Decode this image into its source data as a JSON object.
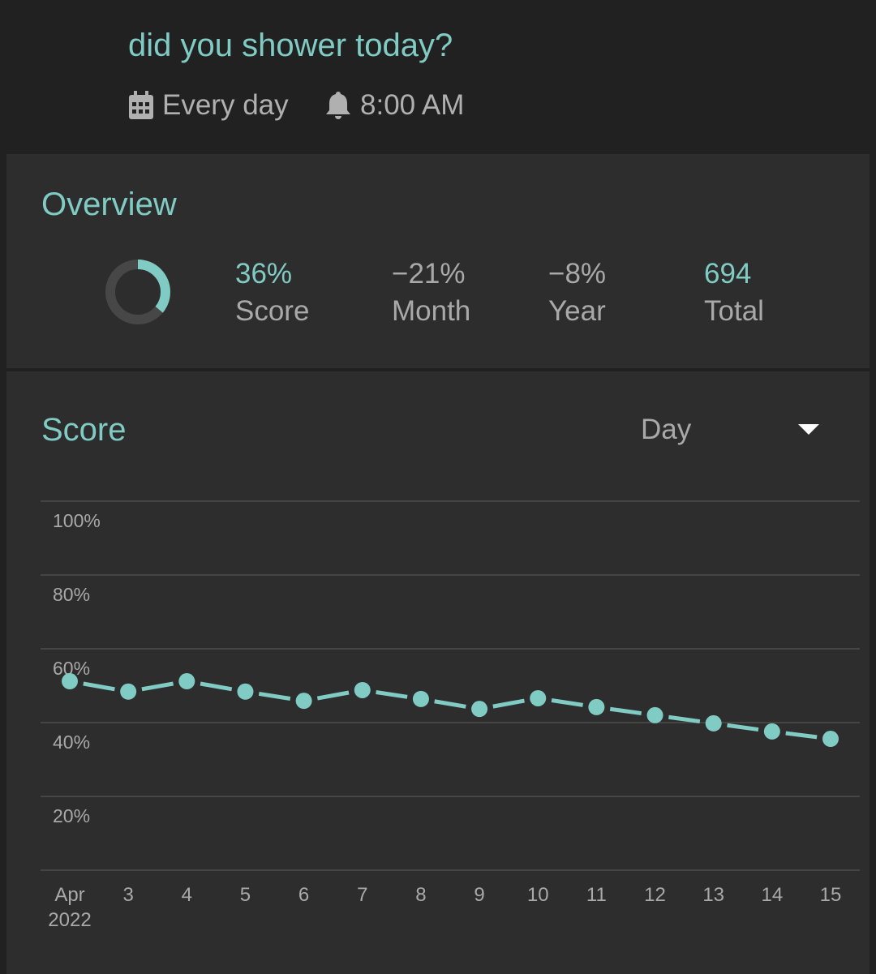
{
  "header": {
    "title": "did you shower today?",
    "frequency": "Every day",
    "frequency_icon": "calendar-icon",
    "reminder": "8:00 AM",
    "reminder_icon": "bell-icon"
  },
  "overview": {
    "title": "Overview",
    "ring_fraction": 0.36,
    "stats": [
      {
        "value": "36%",
        "label": "Score"
      },
      {
        "value": "−21%",
        "label": "Month"
      },
      {
        "value": "−8%",
        "label": "Year"
      },
      {
        "value": "694",
        "label": "Total"
      }
    ]
  },
  "score": {
    "title": "Score",
    "period": "Day"
  },
  "colors": {
    "accent": "#80cbc4",
    "background": "#212121",
    "card": "#2d2d2d"
  },
  "chart_data": {
    "type": "line",
    "ylim": [
      0,
      100
    ],
    "y_ticks": [
      "20%",
      "40%",
      "60%",
      "80%",
      "100%"
    ],
    "x": [
      "Apr",
      "3",
      "4",
      "5",
      "6",
      "7",
      "8",
      "9",
      "10",
      "11",
      "12",
      "13",
      "14",
      "15"
    ],
    "x_sub": "2022",
    "values": [
      51.2,
      48.4,
      51.2,
      48.4,
      45.9,
      48.8,
      46.4,
      43.7,
      46.6,
      44.2,
      42.0,
      39.8,
      37.6,
      35.6
    ],
    "grid": true
  }
}
